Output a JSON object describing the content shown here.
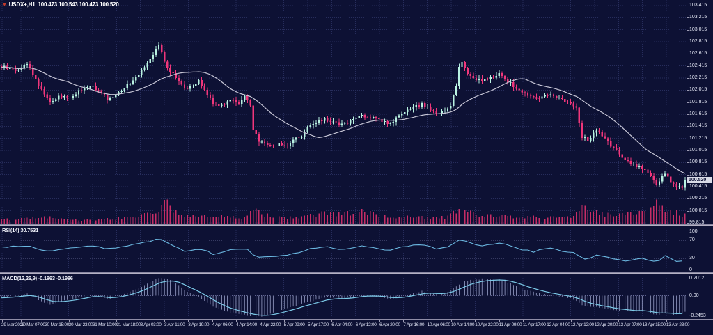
{
  "title": {
    "marker": "▼",
    "symbol_period": "USDX+,H1",
    "ohlc": "100.473 100.543 100.473 100.520",
    "open": "100.473",
    "high": "100.543",
    "low": "100.473",
    "close": "100.520"
  },
  "price_axis": {
    "labels": [
      "103.415",
      "103.215",
      "103.015",
      "102.815",
      "102.615",
      "102.415",
      "102.215",
      "102.015",
      "101.815",
      "101.615",
      "101.415",
      "101.215",
      "101.015",
      "100.815",
      "100.615",
      "100.415",
      "100.215",
      "100.015",
      "99.815"
    ],
    "current_price": "100.520"
  },
  "rsi_panel": {
    "label": "RSI(14)",
    "value": "30.7531",
    "axis_labels": [
      "100",
      "70",
      "30",
      "0"
    ],
    "levels": [
      70,
      30
    ]
  },
  "macd_panel": {
    "label": "MACD(12,26,9)",
    "values": "-0.1863 -0.1986",
    "axis_labels": [
      "0.2012",
      "0.00",
      "-0.2453"
    ],
    "max": 0.2012,
    "min": -0.2453
  },
  "time_axis": {
    "labels": [
      "29 Mar 2023",
      "30 Mar 07:00",
      "30 Mar 15:00",
      "30 Mar 23:00",
      "31 Mar 10:00",
      "31 Mar 18:00",
      "3 Apr 03:00",
      "3 Apr 11:00",
      "3 Apr 19:00",
      "4 Apr 06:00",
      "4 Apr 14:00",
      "4 Apr 22:00",
      "5 Apr 09:00",
      "5 Apr 17:00",
      "6 Apr 04:00",
      "6 Apr 12:00",
      "6 Apr 20:00",
      "7 Apr 16:00",
      "10 Apr 06:00",
      "10 Apr 14:00",
      "10 Apr 22:00",
      "11 Apr 09:00",
      "11 Apr 17:00",
      "12 Apr 04:00",
      "12 Apr 12:00",
      "12 Apr 20:00",
      "13 Apr 07:00",
      "13 Apr 15:00",
      "13 Apr 23:00"
    ]
  },
  "colors": {
    "background": "#0d1134",
    "grid": "#272d5c",
    "level_dotted": "#5e6290",
    "bull_candle": "#b9f2e2",
    "bear_candle": "#f0367b",
    "ma_line": "#c7c6d6",
    "rsi_line": "#6cb9e2",
    "macd_signal_line": "#7ccae8",
    "macd_histogram": "#9aa1c9",
    "volume_bar": "#c62d66",
    "separator": "#b4b1c3",
    "axis_text": "#e9ecf9",
    "price_badge_bg": "#d8dae6"
  },
  "chart_data": {
    "type": "candlestick",
    "symbol": "USDX+",
    "timeframe": "H1",
    "bars": 240,
    "price_range": [
      99.815,
      103.415
    ],
    "price_step": 0.2,
    "time_range": [
      "29 Mar 2023",
      "13 Apr 23:00"
    ],
    "ohlc_last": {
      "open": 100.473,
      "high": 100.543,
      "low": 100.473,
      "close": 100.52
    },
    "ma_period": 24,
    "close_anchors": [
      [
        0,
        102.4
      ],
      [
        6,
        102.34
      ],
      [
        9,
        102.46
      ],
      [
        13,
        102.1
      ],
      [
        17,
        101.82
      ],
      [
        21,
        101.92
      ],
      [
        24,
        101.88
      ],
      [
        27,
        102.0
      ],
      [
        32,
        102.08
      ],
      [
        37,
        101.86
      ],
      [
        40,
        101.94
      ],
      [
        43,
        102.05
      ],
      [
        46,
        102.18
      ],
      [
        49,
        102.35
      ],
      [
        52,
        102.55
      ],
      [
        55,
        102.76
      ],
      [
        58,
        102.38
      ],
      [
        61,
        102.22
      ],
      [
        65,
        102.02
      ],
      [
        69,
        102.16
      ],
      [
        72,
        101.95
      ],
      [
        74,
        101.8
      ],
      [
        77,
        101.76
      ],
      [
        80,
        101.86
      ],
      [
        83,
        101.8
      ],
      [
        85,
        101.92
      ],
      [
        87,
        101.75
      ],
      [
        88,
        101.34
      ],
      [
        90,
        101.18
      ],
      [
        93,
        101.1
      ],
      [
        97,
        101.12
      ],
      [
        100,
        101.08
      ],
      [
        102,
        101.2
      ],
      [
        105,
        101.26
      ],
      [
        107,
        101.4
      ],
      [
        110,
        101.46
      ],
      [
        113,
        101.54
      ],
      [
        116,
        101.48
      ],
      [
        119,
        101.44
      ],
      [
        122,
        101.5
      ],
      [
        126,
        101.6
      ],
      [
        129,
        101.56
      ],
      [
        132,
        101.52
      ],
      [
        136,
        101.46
      ],
      [
        139,
        101.58
      ],
      [
        143,
        101.7
      ],
      [
        147,
        101.78
      ],
      [
        150,
        101.7
      ],
      [
        152,
        101.6
      ],
      [
        155,
        101.68
      ],
      [
        157,
        101.76
      ],
      [
        159,
        102.1
      ],
      [
        160,
        102.42
      ],
      [
        161,
        102.48
      ],
      [
        163,
        102.28
      ],
      [
        166,
        102.2
      ],
      [
        168,
        102.16
      ],
      [
        171,
        102.22
      ],
      [
        174,
        102.28
      ],
      [
        177,
        102.16
      ],
      [
        180,
        102.04
      ],
      [
        183,
        101.95
      ],
      [
        186,
        101.88
      ],
      [
        189,
        101.9
      ],
      [
        192,
        101.94
      ],
      [
        195,
        101.88
      ],
      [
        199,
        101.8
      ],
      [
        201,
        101.72
      ],
      [
        203,
        101.24
      ],
      [
        205,
        101.18
      ],
      [
        208,
        101.34
      ],
      [
        211,
        101.2
      ],
      [
        214,
        101.04
      ],
      [
        217,
        100.92
      ],
      [
        219,
        100.82
      ],
      [
        222,
        100.76
      ],
      [
        224,
        100.72
      ],
      [
        227,
        100.6
      ],
      [
        229,
        100.46
      ],
      [
        232,
        100.62
      ],
      [
        235,
        100.44
      ],
      [
        238,
        100.4
      ],
      [
        239,
        100.52
      ]
    ],
    "volume_anchors": [
      [
        0,
        0.18
      ],
      [
        9,
        0.22
      ],
      [
        17,
        0.28
      ],
      [
        27,
        0.16
      ],
      [
        37,
        0.22
      ],
      [
        46,
        0.3
      ],
      [
        52,
        0.45
      ],
      [
        55,
        0.6
      ],
      [
        58,
        1.0
      ],
      [
        60,
        0.55
      ],
      [
        63,
        0.4
      ],
      [
        65,
        0.35
      ],
      [
        70,
        0.3
      ],
      [
        74,
        0.32
      ],
      [
        80,
        0.28
      ],
      [
        85,
        0.3
      ],
      [
        88,
        0.72
      ],
      [
        91,
        0.45
      ],
      [
        95,
        0.35
      ],
      [
        100,
        0.28
      ],
      [
        105,
        0.3
      ],
      [
        110,
        0.4
      ],
      [
        113,
        0.48
      ],
      [
        117,
        0.42
      ],
      [
        119,
        0.52
      ],
      [
        123,
        0.45
      ],
      [
        126,
        0.62
      ],
      [
        129,
        0.45
      ],
      [
        133,
        0.38
      ],
      [
        137,
        0.3
      ],
      [
        141,
        0.28
      ],
      [
        145,
        0.32
      ],
      [
        150,
        0.26
      ],
      [
        155,
        0.3
      ],
      [
        158,
        0.45
      ],
      [
        160,
        0.85
      ],
      [
        162,
        0.55
      ],
      [
        166,
        0.38
      ],
      [
        170,
        0.35
      ],
      [
        174,
        0.38
      ],
      [
        178,
        0.32
      ],
      [
        183,
        0.3
      ],
      [
        187,
        0.28
      ],
      [
        191,
        0.32
      ],
      [
        196,
        0.28
      ],
      [
        200,
        0.35
      ],
      [
        203,
        0.8
      ],
      [
        206,
        0.55
      ],
      [
        209,
        0.45
      ],
      [
        213,
        0.4
      ],
      [
        217,
        0.42
      ],
      [
        220,
        0.48
      ],
      [
        224,
        0.52
      ],
      [
        227,
        0.6
      ],
      [
        229,
        0.95
      ],
      [
        231,
        0.7
      ],
      [
        233,
        0.55
      ],
      [
        236,
        0.5
      ],
      [
        239,
        0.4
      ]
    ],
    "indicators": [
      {
        "name": "RSI",
        "period": 14,
        "last": 30.7531,
        "range": [
          0,
          100
        ],
        "levels": [
          70,
          30
        ],
        "anchors": [
          [
            0,
            55
          ],
          [
            6,
            57
          ],
          [
            9,
            58
          ],
          [
            13,
            51
          ],
          [
            17,
            46
          ],
          [
            21,
            52
          ],
          [
            24,
            53
          ],
          [
            27,
            56
          ],
          [
            32,
            58
          ],
          [
            37,
            50
          ],
          [
            43,
            56
          ],
          [
            46,
            60
          ],
          [
            49,
            64
          ],
          [
            52,
            68
          ],
          [
            55,
            74
          ],
          [
            58,
            63
          ],
          [
            61,
            55
          ],
          [
            65,
            44
          ],
          [
            69,
            52
          ],
          [
            72,
            46
          ],
          [
            74,
            40
          ],
          [
            77,
            42
          ],
          [
            80,
            48
          ],
          [
            85,
            52
          ],
          [
            87,
            46
          ],
          [
            88,
            37
          ],
          [
            90,
            34
          ],
          [
            93,
            33
          ],
          [
            97,
            37
          ],
          [
            100,
            36
          ],
          [
            102,
            42
          ],
          [
            105,
            45
          ],
          [
            107,
            50
          ],
          [
            110,
            52
          ],
          [
            113,
            56
          ],
          [
            116,
            51
          ],
          [
            119,
            48
          ],
          [
            122,
            52
          ],
          [
            126,
            58
          ],
          [
            129,
            55
          ],
          [
            132,
            51
          ],
          [
            136,
            47
          ],
          [
            139,
            53
          ],
          [
            143,
            58
          ],
          [
            147,
            62
          ],
          [
            150,
            56
          ],
          [
            152,
            50
          ],
          [
            155,
            54
          ],
          [
            157,
            58
          ],
          [
            160,
            70
          ],
          [
            161,
            72
          ],
          [
            163,
            65
          ],
          [
            166,
            61
          ],
          [
            168,
            58
          ],
          [
            171,
            61
          ],
          [
            174,
            64
          ],
          [
            177,
            58
          ],
          [
            180,
            52
          ],
          [
            183,
            48
          ],
          [
            186,
            45
          ],
          [
            189,
            49
          ],
          [
            192,
            52
          ],
          [
            195,
            47
          ],
          [
            199,
            44
          ],
          [
            201,
            40
          ],
          [
            203,
            28
          ],
          [
            205,
            27
          ],
          [
            208,
            39
          ],
          [
            211,
            33
          ],
          [
            214,
            29
          ],
          [
            217,
            26
          ],
          [
            219,
            25
          ],
          [
            222,
            29
          ],
          [
            224,
            31
          ],
          [
            227,
            25
          ],
          [
            229,
            21
          ],
          [
            232,
            37
          ],
          [
            235,
            25
          ],
          [
            238,
            24
          ],
          [
            239,
            31
          ]
        ]
      },
      {
        "name": "MACD",
        "params": [
          12,
          26,
          9
        ],
        "last_main": -0.1863,
        "last_signal": -0.1986,
        "range": [
          -0.2453,
          0.2012
        ],
        "anchors": [
          [
            0,
            -0.02
          ],
          [
            6,
            0.0
          ],
          [
            9,
            0.02
          ],
          [
            13,
            -0.05
          ],
          [
            17,
            -0.1
          ],
          [
            21,
            -0.06
          ],
          [
            24,
            -0.04
          ],
          [
            27,
            -0.02
          ],
          [
            32,
            0.01
          ],
          [
            37,
            -0.04
          ],
          [
            43,
            0.02
          ],
          [
            46,
            0.06
          ],
          [
            49,
            0.1
          ],
          [
            52,
            0.15
          ],
          [
            55,
            0.2
          ],
          [
            58,
            0.19
          ],
          [
            61,
            0.14
          ],
          [
            65,
            0.04
          ],
          [
            69,
            -0.01
          ],
          [
            72,
            -0.08
          ],
          [
            74,
            -0.13
          ],
          [
            77,
            -0.16
          ],
          [
            80,
            -0.19
          ],
          [
            83,
            -0.21
          ],
          [
            85,
            -0.22
          ],
          [
            88,
            -0.243
          ],
          [
            91,
            -0.235
          ],
          [
            93,
            -0.22
          ],
          [
            97,
            -0.17
          ],
          [
            100,
            -0.14
          ],
          [
            102,
            -0.12
          ],
          [
            105,
            -0.09
          ],
          [
            107,
            -0.07
          ],
          [
            110,
            -0.05
          ],
          [
            113,
            -0.02
          ],
          [
            116,
            -0.02
          ],
          [
            119,
            -0.03
          ],
          [
            122,
            -0.02
          ],
          [
            126,
            0.01
          ],
          [
            129,
            0.0
          ],
          [
            132,
            -0.01
          ],
          [
            136,
            -0.04
          ],
          [
            139,
            -0.02
          ],
          [
            143,
            0.02
          ],
          [
            147,
            0.05
          ],
          [
            150,
            0.03
          ],
          [
            152,
            0.01
          ],
          [
            155,
            0.03
          ],
          [
            157,
            0.06
          ],
          [
            160,
            0.13
          ],
          [
            163,
            0.17
          ],
          [
            166,
            0.18
          ],
          [
            168,
            0.19
          ],
          [
            171,
            0.185
          ],
          [
            174,
            0.18
          ],
          [
            177,
            0.15
          ],
          [
            180,
            0.11
          ],
          [
            183,
            0.07
          ],
          [
            186,
            0.04
          ],
          [
            189,
            0.02
          ],
          [
            192,
            0.01
          ],
          [
            195,
            -0.01
          ],
          [
            199,
            -0.03
          ],
          [
            201,
            -0.06
          ],
          [
            203,
            -0.11
          ],
          [
            205,
            -0.12
          ],
          [
            208,
            -0.13
          ],
          [
            211,
            -0.14
          ],
          [
            214,
            -0.16
          ],
          [
            217,
            -0.17
          ],
          [
            219,
            -0.18
          ],
          [
            222,
            -0.175
          ],
          [
            224,
            -0.17
          ],
          [
            227,
            -0.2
          ],
          [
            229,
            -0.22
          ],
          [
            232,
            -0.19
          ],
          [
            235,
            -0.215
          ],
          [
            238,
            -0.2
          ],
          [
            239,
            -0.1863
          ]
        ]
      }
    ]
  }
}
